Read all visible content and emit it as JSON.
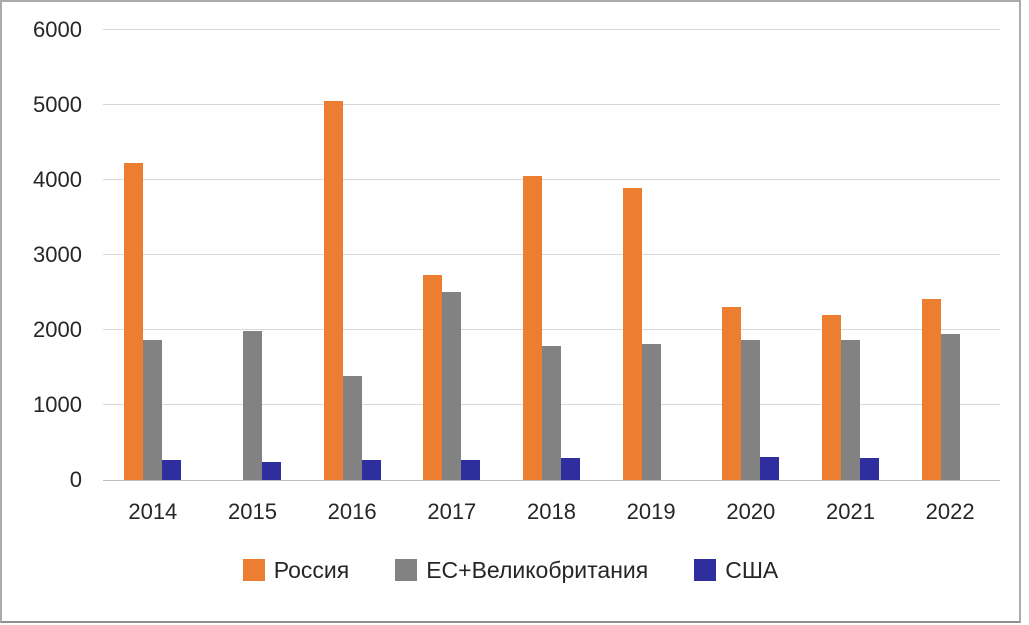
{
  "chart_data": {
    "type": "bar",
    "title": "",
    "xlabel": "",
    "ylabel": "",
    "categories": [
      "2014",
      "2015",
      "2016",
      "2017",
      "2018",
      "2019",
      "2020",
      "2021",
      "2022"
    ],
    "series": [
      {
        "name": "Россия",
        "color": "#ED7D31",
        "values": [
          4230,
          0,
          5050,
          2730,
          4050,
          3890,
          2310,
          2200,
          2410
        ]
      },
      {
        "name": "ЕС+Великобритания",
        "color": "#828282",
        "values": [
          1860,
          1980,
          1380,
          2500,
          1780,
          1810,
          1860,
          1860,
          1950
        ]
      },
      {
        "name": "США",
        "color": "#2E2E9F",
        "values": [
          270,
          240,
          270,
          270,
          290,
          0,
          310,
          290,
          0
        ]
      }
    ],
    "ylim": [
      0,
      6000
    ],
    "ytick_step": 1000,
    "yticks": [
      "0",
      "1000",
      "2000",
      "3000",
      "4000",
      "5000",
      "6000"
    ],
    "grid": true,
    "gridline_color": "#D9D9D9",
    "axis_line_color": "#BFBFBF",
    "text_color": "#262626",
    "background_color": "#FFFFFF",
    "legend_position": "bottom"
  }
}
